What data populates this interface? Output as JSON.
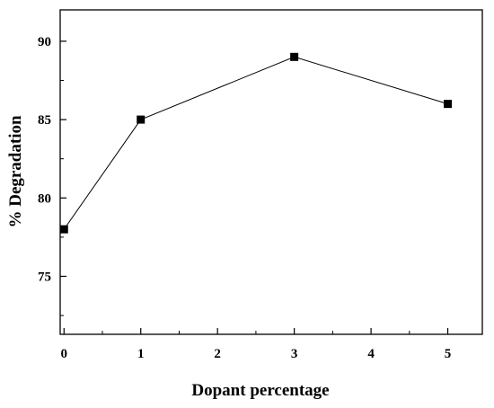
{
  "chart_data": {
    "type": "line",
    "title": "",
    "xlabel": "Dopant percentage",
    "ylabel": "% Degradation",
    "x": [
      0,
      1,
      3,
      5
    ],
    "series": [
      {
        "values": [
          78,
          85,
          89,
          86
        ]
      }
    ],
    "xlim": [
      -0.05,
      5.45
    ],
    "ylim": [
      71.3,
      92.0
    ],
    "xticks": [
      0,
      1,
      2,
      3,
      4,
      5
    ],
    "xtick_labels": [
      "0",
      "1",
      "2",
      "3",
      "4",
      "5"
    ],
    "x_minor_ticks": [
      0.5,
      1.5,
      2.5,
      3.5,
      4.5
    ],
    "yticks": [
      75,
      80,
      85,
      90
    ],
    "ytick_labels": [
      "75",
      "80",
      "85",
      "90"
    ],
    "y_minor_ticks": [
      72.5,
      77.5,
      82.5,
      87.5
    ],
    "grid": false,
    "legend": "none",
    "marker": "square",
    "colors": {
      "line": "#000000",
      "marker": "#000000",
      "axis": "#000000",
      "background": "#ffffff"
    }
  }
}
